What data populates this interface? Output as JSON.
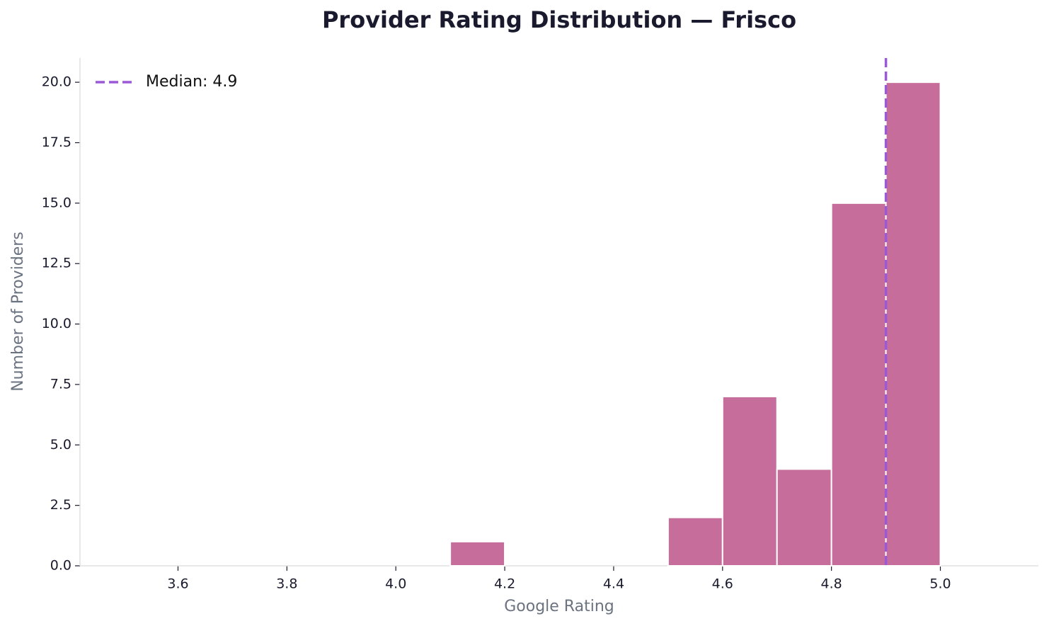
{
  "chart_data": {
    "type": "histogram",
    "title": "Provider Rating Distribution — Frisco",
    "x_label": "Google Rating",
    "y_label": "Number of Providers",
    "bins": [
      3.5,
      3.6,
      3.7,
      3.8,
      3.9,
      4.0,
      4.1,
      4.2,
      4.3,
      4.4,
      4.5,
      4.6,
      4.7,
      4.8,
      4.9,
      5.0,
      5.1
    ],
    "counts": [
      0,
      0,
      0,
      0,
      0,
      0,
      1,
      0,
      0,
      0,
      2,
      7,
      4,
      15,
      20,
      0
    ],
    "color": "#c76d9b",
    "median": {
      "value": 4.9,
      "label": "Median: 4.9",
      "color": "#9b59d6"
    },
    "legend_position": "upper left",
    "xlim": [
      3.42,
      5.18
    ],
    "ylim": [
      0,
      21
    ],
    "xticks": [
      3.6,
      3.8,
      {
        "value": 4.0,
        "label": "4.0"
      },
      4.2,
      4.4,
      4.6,
      4.8,
      {
        "value": 5.0,
        "label": "5.0"
      }
    ],
    "yticks": [
      {
        "value": 0,
        "label": "0.0"
      },
      {
        "value": 2.5,
        "label": "2.5"
      },
      {
        "value": 5,
        "label": "5.0"
      },
      {
        "value": 7.5,
        "label": "7.5"
      },
      {
        "value": 10,
        "label": "10.0"
      },
      {
        "value": 12.5,
        "label": "12.5"
      },
      {
        "value": 15,
        "label": "15.0"
      },
      {
        "value": 17.5,
        "label": "17.5"
      },
      {
        "value": 20,
        "label": "20.0"
      }
    ]
  }
}
